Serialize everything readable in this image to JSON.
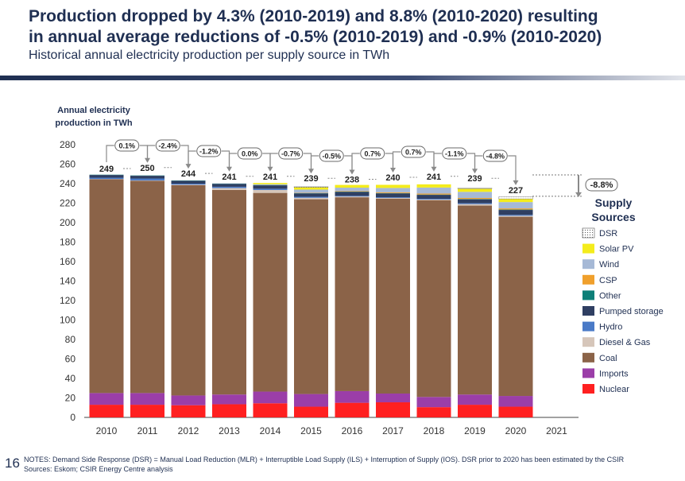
{
  "header": {
    "title_line1": "Production dropped by 4.3% (2010-2019) and 8.8% (2010-2020) resulting",
    "title_line2": "in annual average reductions of -0.5% (2010-2019) and -0.9% (2010-2020)",
    "subtitle": "Historical annual electricity production per supply source in TWh"
  },
  "page_number": "16",
  "notes": {
    "line1": "NOTES: Demand Side Response (DSR) = Manual Load Reduction (MLR) + Interruptible Load Supply (ILS) + Interruption of Supply (IOS). DSR prior to 2020 has been estimated by the CSIR",
    "line2": "Sources: Eskom; CSIR Energy Centre analysis"
  },
  "chart_data": {
    "type": "stacked-bar",
    "ylabel": "Annual electricity production in TWh",
    "ylabel_lines": [
      "Annual electricity",
      "production in TWh"
    ],
    "ylim": [
      0,
      280
    ],
    "yticks": [
      0,
      20,
      40,
      60,
      80,
      100,
      120,
      140,
      160,
      180,
      200,
      220,
      240,
      260,
      280
    ],
    "categories": [
      "2010",
      "2011",
      "2012",
      "2013",
      "2014",
      "2015",
      "2016",
      "2017",
      "2018",
      "2019",
      "2020",
      "2021"
    ],
    "totals": [
      249,
      250,
      244,
      241,
      241,
      239,
      238,
      240,
      241,
      239,
      227,
      null
    ],
    "total_labels": [
      "249",
      "250",
      "244",
      "241",
      "241",
      "239",
      "238",
      "240",
      "241",
      "239",
      "227",
      ""
    ],
    "yoy_changes": [
      "0.1%",
      "-2.4%",
      "-1.2%",
      "0.0%",
      "-0.7%",
      "-0.5%",
      "0.7%",
      "0.7%",
      "-1.1%",
      "-4.8%"
    ],
    "overall_change": "-8.8%",
    "legend_title": "Supply Sources",
    "series": [
      {
        "name": "Nuclear",
        "color": "#ff2020",
        "values": [
          13,
          13,
          12.5,
          13.5,
          14.5,
          11,
          15,
          15.5,
          10.5,
          13,
          11,
          null
        ]
      },
      {
        "name": "Imports",
        "color": "#9b3ea8",
        "values": [
          12,
          12,
          10,
          10,
          12,
          13,
          12,
          9,
          10.5,
          10.5,
          11,
          null
        ]
      },
      {
        "name": "Coal",
        "color": "#8b6348",
        "values": [
          219.5,
          218,
          216,
          210,
          204,
          200,
          199,
          200,
          202,
          194,
          184,
          null
        ]
      },
      {
        "name": "Diesel & Gas",
        "color": "#d6c6ba",
        "values": [
          0.3,
          0.3,
          0.5,
          2,
          3,
          1.5,
          0.8,
          0.8,
          0.7,
          1.5,
          1,
          null
        ]
      },
      {
        "name": "Hydro",
        "color": "#4a7ac7",
        "values": [
          1.3,
          2,
          1,
          1.3,
          1.3,
          1,
          0.7,
          0.7,
          0.8,
          0.9,
          1,
          null
        ]
      },
      {
        "name": "Pumped storage",
        "color": "#2f3f62",
        "values": [
          2.8,
          2.8,
          3,
          3,
          3.5,
          3.5,
          4,
          4,
          4,
          4,
          5,
          null
        ]
      },
      {
        "name": "Other",
        "color": "#0d7f78",
        "values": [
          0.3,
          0.3,
          0.3,
          0.3,
          0.3,
          0.3,
          0.3,
          0.3,
          0.3,
          0.4,
          0.4,
          null
        ]
      },
      {
        "name": "CSP",
        "color": "#f0a02c",
        "values": [
          0,
          0,
          0,
          0,
          0,
          0.3,
          0.6,
          0.8,
          1,
          1,
          1.2,
          null
        ]
      },
      {
        "name": "Wind",
        "color": "#a6b9d6",
        "values": [
          0,
          0,
          0,
          0.2,
          0.8,
          3.3,
          3.5,
          4.5,
          6.2,
          6.3,
          6.5,
          null
        ]
      },
      {
        "name": "Solar PV",
        "color": "#f4ec1c",
        "values": [
          0,
          0,
          0,
          0,
          1.3,
          2.4,
          2.8,
          3.2,
          3.3,
          3.2,
          3.3,
          null
        ]
      },
      {
        "name": "DSR",
        "color": "#ffffff",
        "pattern": "dots",
        "values": [
          0,
          0,
          0,
          0,
          0,
          0.5,
          0,
          0,
          0,
          0.6,
          2,
          null
        ]
      }
    ],
    "legend_order": [
      "DSR",
      "Solar PV",
      "Wind",
      "CSP",
      "Other",
      "Pumped storage",
      "Hydro",
      "Diesel & Gas",
      "Coal",
      "Imports",
      "Nuclear"
    ]
  }
}
